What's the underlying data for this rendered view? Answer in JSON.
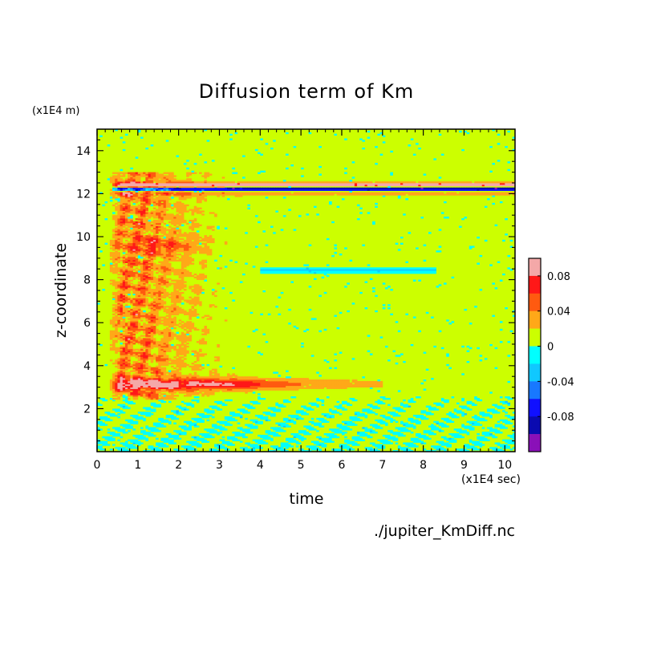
{
  "chart_data": {
    "type": "heatmap",
    "title": "Diffusion term of Km",
    "xlabel": "time",
    "ylabel": "z-coordinate",
    "x_unit": "(x1E4 sec)",
    "y_unit": "(x1E4 m)",
    "xlim": [
      0,
      10.25
    ],
    "ylim": [
      0,
      15
    ],
    "x_ticks": [
      "0",
      "1",
      "2",
      "3",
      "4",
      "5",
      "6",
      "7",
      "8",
      "9",
      "10"
    ],
    "y_ticks": [
      "2",
      "4",
      "6",
      "8",
      "10",
      "12",
      "14"
    ],
    "grid": false,
    "colorbar": {
      "levels": [
        {
          "range": [
            0.08,
            0.1
          ],
          "color": "#f4a8a8"
        },
        {
          "range": [
            0.06,
            0.08
          ],
          "color": "#ff1818"
        },
        {
          "range": [
            0.04,
            0.06
          ],
          "color": "#ff5a10"
        },
        {
          "range": [
            0.02,
            0.04
          ],
          "color": "#ffa818"
        },
        {
          "range": [
            0.0,
            0.02
          ],
          "color": "#ccff00"
        },
        {
          "range": [
            -0.02,
            0.0
          ],
          "color": "#00ffff"
        },
        {
          "range": [
            -0.04,
            -0.02
          ],
          "color": "#10c8ff"
        },
        {
          "range": [
            -0.06,
            -0.04
          ],
          "color": "#1878ff"
        },
        {
          "range": [
            -0.08,
            -0.06
          ],
          "color": "#1010ff"
        },
        {
          "range": [
            -0.1,
            -0.08
          ],
          "color": "#0a0ab0"
        },
        {
          "range": [
            -0.12,
            -0.1
          ],
          "color": "#8a10b8"
        }
      ],
      "tick_labels": [
        "0.08",
        "0.04",
        "0",
        "-0.04",
        "-0.08"
      ]
    },
    "features": [
      {
        "name": "positive band",
        "x": [
          0.4,
          10.25
        ],
        "z": 12.4,
        "sign": "+"
      },
      {
        "name": "negative band",
        "x": [
          0.4,
          10.25
        ],
        "z": 12.2,
        "sign": "-"
      },
      {
        "name": "positive band",
        "x": [
          0.4,
          6.5
        ],
        "z": 3.1,
        "sign": "+"
      },
      {
        "name": "positive region",
        "x": [
          0.3,
          3.5
        ],
        "z": [
          2.5,
          13
        ],
        "sign": "+"
      },
      {
        "name": "negative region",
        "x": [
          0,
          10.25
        ],
        "z": [
          0,
          2.6
        ],
        "sign": "-"
      },
      {
        "name": "negative band",
        "x": [
          4,
          8.3
        ],
        "z": 8.4,
        "sign": "-"
      }
    ]
  },
  "footer": {
    "source_file": "./jupiter_KmDiff.nc"
  }
}
